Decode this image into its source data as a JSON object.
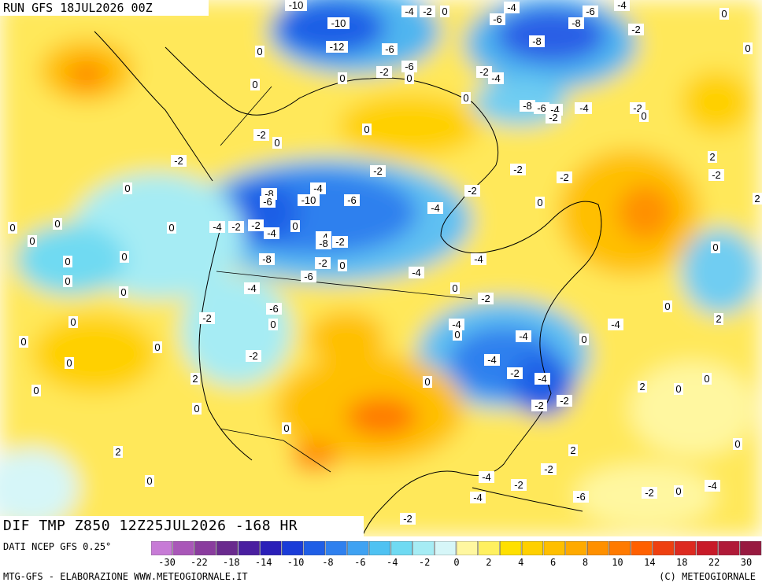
{
  "header": {
    "run": "RUN GFS 18JUL2026 00Z"
  },
  "field": {
    "label": "DIF TMP Z850 12Z25JUL2026 -168 HR"
  },
  "legend": {
    "source": "DATI NCEP GFS 0.25°",
    "footer_left": "MTG-GFS - ELABORAZIONE WWW.METEOGIORNALE.IT",
    "footer_right": "(C) METEOGIORNALE",
    "tick_labels": [
      "-30",
      "-22",
      "-18",
      "-14",
      "-10",
      "-8",
      "-6",
      "-4",
      "-2",
      "0",
      "2",
      "4",
      "6",
      "8",
      "10",
      "14",
      "18",
      "22",
      "30"
    ],
    "colors": [
      "#c77bd6",
      "#a957b8",
      "#8a3c9e",
      "#6a2a8e",
      "#4a1fa0",
      "#2a1fb8",
      "#1a3cd8",
      "#1f5ee6",
      "#2f80ee",
      "#3fa2f2",
      "#4fc2f2",
      "#6fdaf2",
      "#a6ecf4",
      "#d6f6f8",
      "#fff7a0",
      "#fff060",
      "#ffe000",
      "#ffd000",
      "#ffbf00",
      "#ffaa00",
      "#ff9000",
      "#ff7a00",
      "#ff6000",
      "#ee4010",
      "#dd2a20",
      "#c81a28",
      "#b01a38",
      "#981a40"
    ]
  },
  "map": {
    "labels": [
      "-10",
      "-10",
      "-12",
      "-4",
      "-2",
      "0",
      "-4",
      "-6",
      "-8",
      "-6",
      "-4",
      "-6",
      "-8",
      "-2",
      "0",
      "-6",
      "-4",
      "0",
      "-2",
      "-2",
      "-4",
      "0",
      "-8",
      "-6",
      "-4",
      "-4",
      "-2",
      "-2",
      "0",
      "0",
      "-2",
      "0",
      "0",
      "0",
      "0",
      "-2",
      "-2",
      "-2",
      "0",
      "-2",
      "-4",
      "-8",
      "-6",
      "-10",
      "-4",
      "-6",
      "-2",
      "-4",
      "-4",
      "0",
      "-2",
      "-4",
      "-2",
      "-8",
      "-4",
      "-4",
      "-8",
      "-6",
      "-2",
      "0",
      "-4",
      "-6",
      "0",
      "-2",
      "0",
      "-2",
      "-4",
      "0",
      "-4",
      "-4",
      "-2",
      "0",
      "-4",
      "-2",
      "-2",
      "0",
      "-2",
      "2",
      "0",
      "2",
      "0",
      "2",
      "0",
      "-4",
      "2",
      "0",
      "0",
      "2",
      "0",
      "-2",
      "-4",
      "-4",
      "-2",
      "-2",
      "-6",
      "-2",
      "0",
      "-4",
      "0",
      "0",
      "0",
      "2",
      "0",
      "2",
      "-2",
      "0",
      "0",
      "0",
      "0",
      "0",
      "0",
      "0",
      "0",
      "0",
      "0",
      "0",
      "0",
      "0",
      "-2"
    ]
  }
}
